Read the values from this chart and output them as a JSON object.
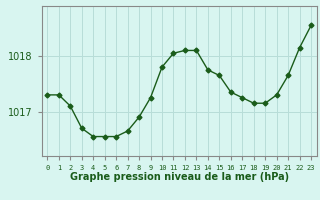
{
  "hours": [
    0,
    1,
    2,
    3,
    4,
    5,
    6,
    7,
    8,
    9,
    10,
    11,
    12,
    13,
    14,
    15,
    16,
    17,
    18,
    19,
    20,
    21,
    22,
    23
  ],
  "pressure": [
    1017.3,
    1017.3,
    1017.1,
    1016.7,
    1016.55,
    1016.55,
    1016.55,
    1016.65,
    1016.9,
    1017.25,
    1017.8,
    1018.05,
    1018.1,
    1018.1,
    1017.75,
    1017.65,
    1017.35,
    1017.25,
    1017.15,
    1017.15,
    1017.3,
    1017.65,
    1018.15,
    1018.55
  ],
  "line_color": "#1a5c1a",
  "marker": "D",
  "marker_size": 2.5,
  "background_color": "#d8f5f0",
  "grid_color": "#b8ddd8",
  "xlabel": "Graphe pression niveau de la mer (hPa)",
  "xlabel_fontsize": 7,
  "ylabel_ticks": [
    1017,
    1018
  ],
  "xlim": [
    -0.5,
    23.5
  ],
  "ylim": [
    1016.2,
    1018.9
  ],
  "tick_color": "#1a5c1a",
  "axis_color": "#888888"
}
